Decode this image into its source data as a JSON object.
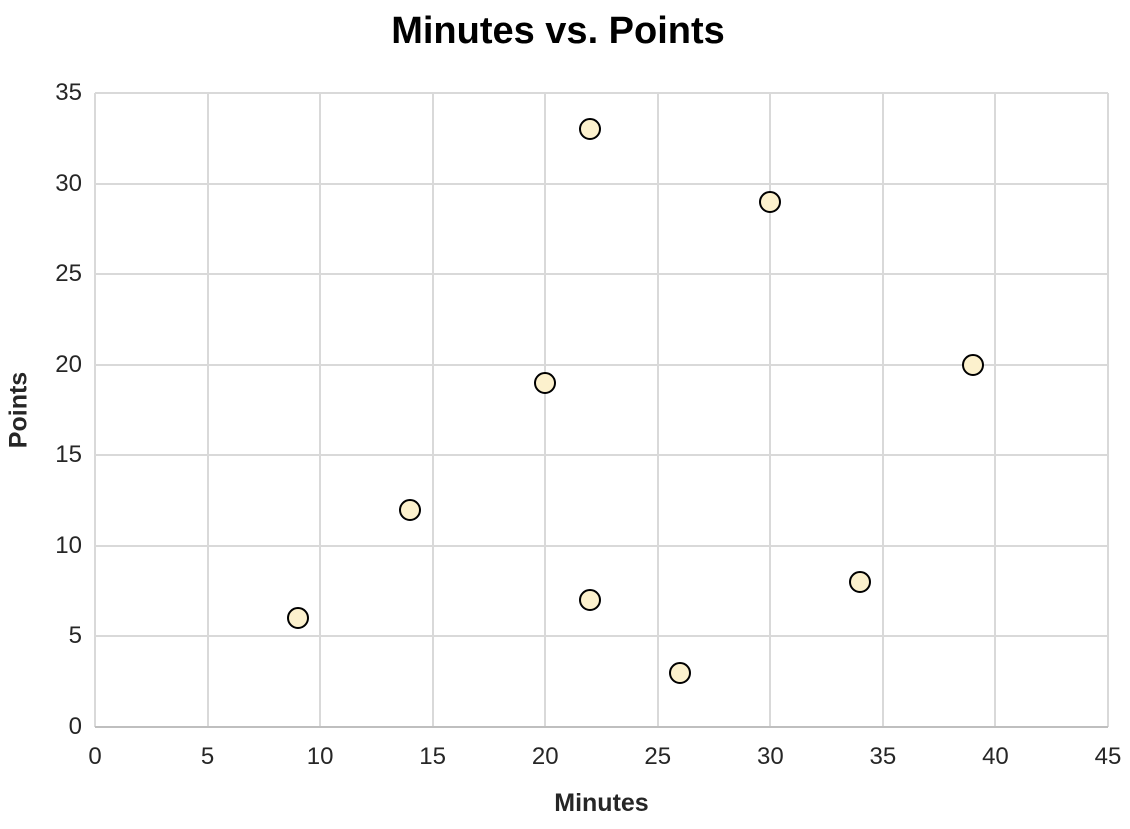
{
  "chart_data": {
    "type": "scatter",
    "title": "Minutes vs. Points",
    "xlabel": "Minutes",
    "ylabel": "Points",
    "xlim": [
      0,
      45
    ],
    "ylim": [
      0,
      35
    ],
    "x_ticks": [
      0,
      5,
      10,
      15,
      20,
      25,
      30,
      35,
      40,
      45
    ],
    "y_ticks": [
      0,
      5,
      10,
      15,
      20,
      25,
      30,
      35
    ],
    "grid": true,
    "legend_position": "none",
    "series": [
      {
        "name": "Points",
        "points": [
          {
            "x": 9,
            "y": 6
          },
          {
            "x": 14,
            "y": 12
          },
          {
            "x": 20,
            "y": 19
          },
          {
            "x": 22,
            "y": 33
          },
          {
            "x": 22,
            "y": 7
          },
          {
            "x": 26,
            "y": 3
          },
          {
            "x": 30,
            "y": 29
          },
          {
            "x": 34,
            "y": 8
          },
          {
            "x": 39,
            "y": 20
          }
        ]
      }
    ],
    "colors": {
      "marker_fill": "#FCF1CD",
      "marker_stroke": "#000000",
      "gridline": "#D9D9D9",
      "axis_line": "#BFBFBF",
      "tick_text": "#262626",
      "title_text": "#000000"
    }
  }
}
